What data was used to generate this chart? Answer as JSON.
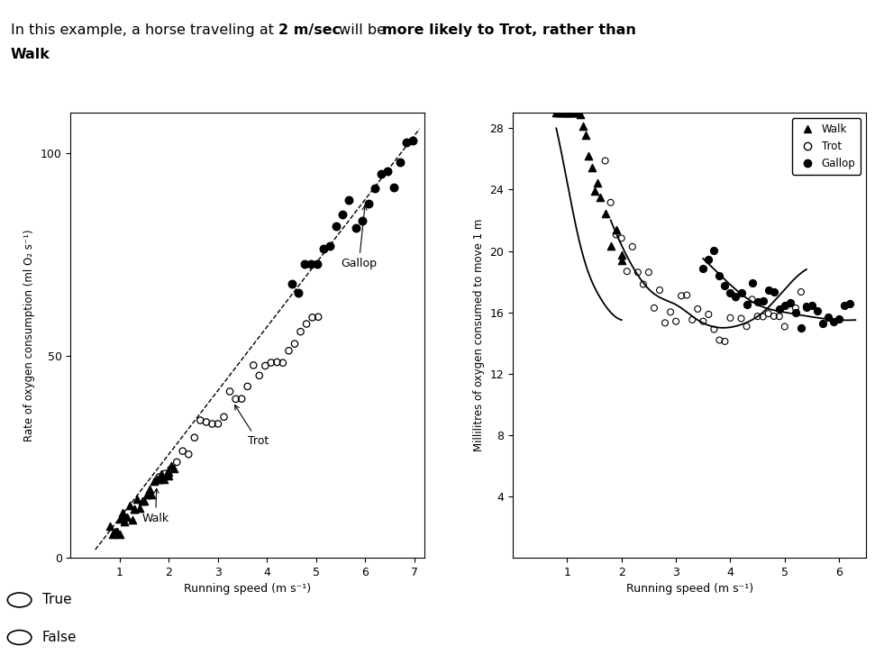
{
  "bg_color": "#ffffff",
  "left_ylabel": "Rate of oxygen consumption (ml O₂ s⁻¹)",
  "left_xlabel": "Running speed (m s⁻¹)",
  "left_ylim": [
    0,
    110
  ],
  "left_xlim": [
    0,
    7.2
  ],
  "left_yticks": [
    0,
    50,
    100
  ],
  "left_xticks": [
    1,
    2,
    3,
    4,
    5,
    6,
    7
  ],
  "right_ylabel": "Millilitres of oxygen consumed to move 1 m",
  "right_xlabel": "Running speed (m s⁻¹)",
  "right_ylim": [
    0,
    29
  ],
  "right_xlim": [
    0,
    6.5
  ],
  "right_yticks": [
    4,
    8,
    12,
    16,
    20,
    24,
    28
  ],
  "right_xticks": [
    1,
    2,
    3,
    4,
    5,
    6
  ],
  "dashed_line_x": [
    0.5,
    7.1
  ],
  "dashed_line_y": [
    2,
    106
  ],
  "walk_curve_x": [
    0.8,
    1.0,
    1.2,
    1.4,
    1.6,
    1.8,
    2.0
  ],
  "walk_curve_y": [
    28.0,
    24.5,
    21.0,
    18.5,
    17.0,
    16.0,
    15.5
  ],
  "trot_curve_x": [
    1.8,
    2.2,
    2.6,
    3.0,
    3.4,
    3.8,
    4.2,
    4.6,
    5.0,
    5.4
  ],
  "trot_curve_y": [
    22.0,
    19.0,
    17.2,
    16.5,
    15.5,
    15.0,
    15.2,
    16.0,
    17.5,
    18.8
  ],
  "gallop_curve_x": [
    3.5,
    4.0,
    4.5,
    5.0,
    5.5,
    6.0,
    6.3
  ],
  "gallop_curve_y": [
    19.5,
    17.8,
    16.5,
    16.0,
    15.7,
    15.5,
    15.5
  ]
}
